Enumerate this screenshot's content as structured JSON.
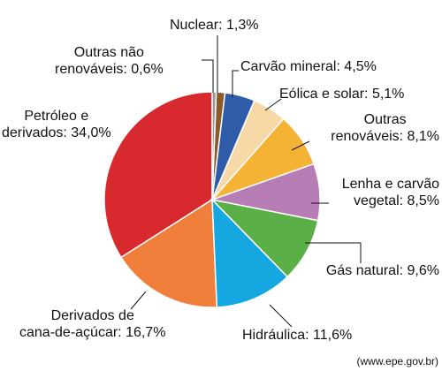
{
  "chart_data": {
    "type": "pie",
    "values": [
      0.6,
      1.3,
      4.5,
      5.1,
      8.1,
      8.5,
      9.6,
      11.6,
      16.7,
      34.0
    ],
    "value_labels": [
      "Outras não\nrenováveis: 0,6%",
      "Nuclear: 1,3%",
      "Carvão mineral: 4,5%",
      "Eólica e solar: 5,1%",
      "Outras\nrenováveis: 8,1%",
      "Lenha e carvão\nvegetal: 8,5%",
      "Gás natural: 9,6%",
      "Hidráulica: 11,6%",
      "Derivados de\ncana-de-açúcar: 16,7%",
      "Petróleo e\nderivados: 34,0%"
    ],
    "colors": [
      "#9a9a9a",
      "#8b5a2b",
      "#2e5ca8",
      "#f7d9a8",
      "#f5b335",
      "#b77db5",
      "#5baf47",
      "#14a7e0",
      "#f07f3c",
      "#d82a2e"
    ],
    "source": "(www.epe.gov.br)"
  }
}
